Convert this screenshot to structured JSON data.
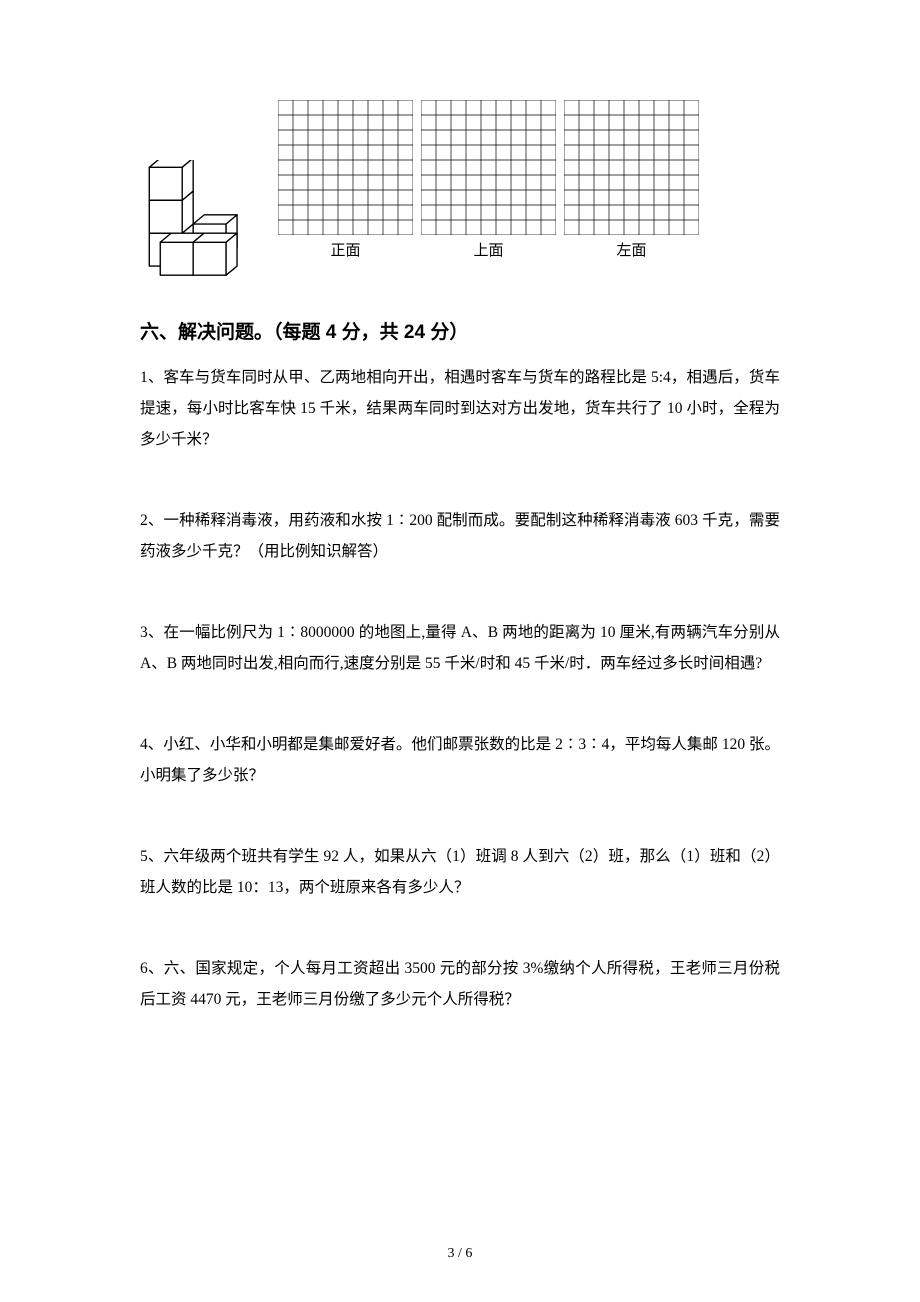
{
  "figure": {
    "grid": {
      "cols_per_panel": 9,
      "rows": 9,
      "cell_size": 15,
      "panels": 3,
      "stroke": "#000000",
      "stroke_width": 0.7
    },
    "labels": {
      "front": "正面",
      "top": "上面",
      "left": "左面"
    },
    "cubes": {
      "fill": "#ffffff",
      "stroke": "#000000",
      "stroke_width": 1.4
    }
  },
  "section_heading": "六、解决问题。（每题 4 分，共 24 分）",
  "questions": [
    "1、客车与货车同时从甲、乙两地相向开出，相遇时客车与货车的路程比是 5:4，相遇后，货车提速，每小时比客车快 15 千米，结果两车同时到达对方出发地，货车共行了 10 小时，全程为多少千米？",
    "2、一种稀释消毒液，用药液和水按 1∶200 配制而成。要配制这种稀释消毒液 603 千克，需要药液多少千克？（用比例知识解答）",
    "3、在一幅比例尺为 1∶8000000 的地图上,量得 A、B 两地的距离为 10 厘米,有两辆汽车分别从 A、B 两地同时出发,相向而行,速度分别是 55 千米/时和 45 千米/时．两车经过多长时间相遇?",
    "4、小红、小华和小明都是集邮爱好者。他们邮票张数的比是 2∶3∶4，平均每人集邮 120 张。小明集了多少张？",
    "5、六年级两个班共有学生 92 人，如果从六（1）班调 8 人到六（2）班，那么（1）班和（2）班人数的比是 10：13，两个班原来各有多少人？",
    "6、六、国家规定，个人每月工资超出 3500 元的部分按 3%缴纳个人所得税，王老师三月份税后工资 4470 元，王老师三月份缴了多少元个人所得税？"
  ],
  "page_number": "3 / 6"
}
